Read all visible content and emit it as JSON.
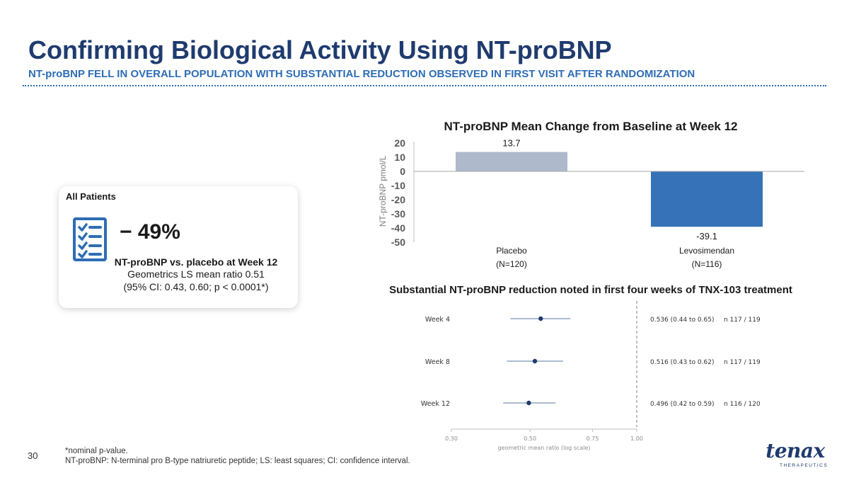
{
  "slide": {
    "title": "Confirming Biological Activity Using NT-proBNP",
    "subtitle": "NT-proBNP FELL IN OVERALL POPULATION WITH SUBSTANTIAL REDUCTION OBSERVED IN FIRST VISIT AFTER RANDOMIZATION",
    "page_number": "30",
    "footnotes": [
      "*nominal p-value.",
      "NT-proBNP: N-terminal pro B-type natriuretic peptide; LS: least squares; CI: confidence interval."
    ],
    "logo": {
      "word": "tenax",
      "sub": "THERAPEUTICS",
      "color": "#1f3b6e"
    }
  },
  "card": {
    "label": "All Patients",
    "icon": "checklist-icon",
    "percent": "− 49%",
    "line1": "NT-proBNP vs. placebo at Week 12",
    "line2": "Geometrics LS mean ratio 0.51",
    "line3": "(95% CI: 0.43, 0.60; p < 0.0001*)"
  },
  "chart_data": [
    {
      "type": "bar",
      "title": "NT-proBNP Mean Change from Baseline at Week 12",
      "ylabel": "NT-proBNP pmol/L",
      "xlabel": "",
      "ylim": [
        -50,
        20
      ],
      "yticks": [
        20,
        10,
        0,
        -10,
        -20,
        -30,
        -40,
        -50
      ],
      "categories": [
        "Placebo",
        "Levosimendan"
      ],
      "category_sublabels": [
        "(N=120)",
        "(N=116)"
      ],
      "values": [
        13.7,
        -39.1
      ],
      "value_labels": [
        "13.7",
        "-39.1"
      ],
      "colors": [
        "#aeb9cc",
        "#3572b8"
      ],
      "grid": false
    },
    {
      "type": "scatter",
      "subtype": "forest",
      "title": "Substantial NT-proBNP reduction noted in first four weeks of TNX-103 treatment",
      "xlabel": "geometric mean ratio (log scale)",
      "xscale": "log",
      "xlim": [
        0.3,
        1.0
      ],
      "xticks": [
        0.3,
        0.5,
        0.75,
        1.0
      ],
      "xtick_labels": [
        "0.30",
        "0.50",
        "0.75",
        "1.00"
      ],
      "reference_line": 1.0,
      "rows": [
        {
          "label": "Week 4",
          "estimate": 0.536,
          "lower": 0.44,
          "upper": 0.65,
          "text": "0.536  (0.44 to 0.65)",
          "n": "n 117 / 119"
        },
        {
          "label": "Week 8",
          "estimate": 0.516,
          "lower": 0.43,
          "upper": 0.62,
          "text": "0.516  (0.43 to 0.62)",
          "n": "n 117 / 119"
        },
        {
          "label": "Week 12",
          "estimate": 0.496,
          "lower": 0.42,
          "upper": 0.59,
          "text": "0.496  (0.42 to 0.59)",
          "n": "n 116 / 120"
        }
      ],
      "point_color": "#1f3b6e",
      "ci_color": "#8fa6c4"
    }
  ]
}
